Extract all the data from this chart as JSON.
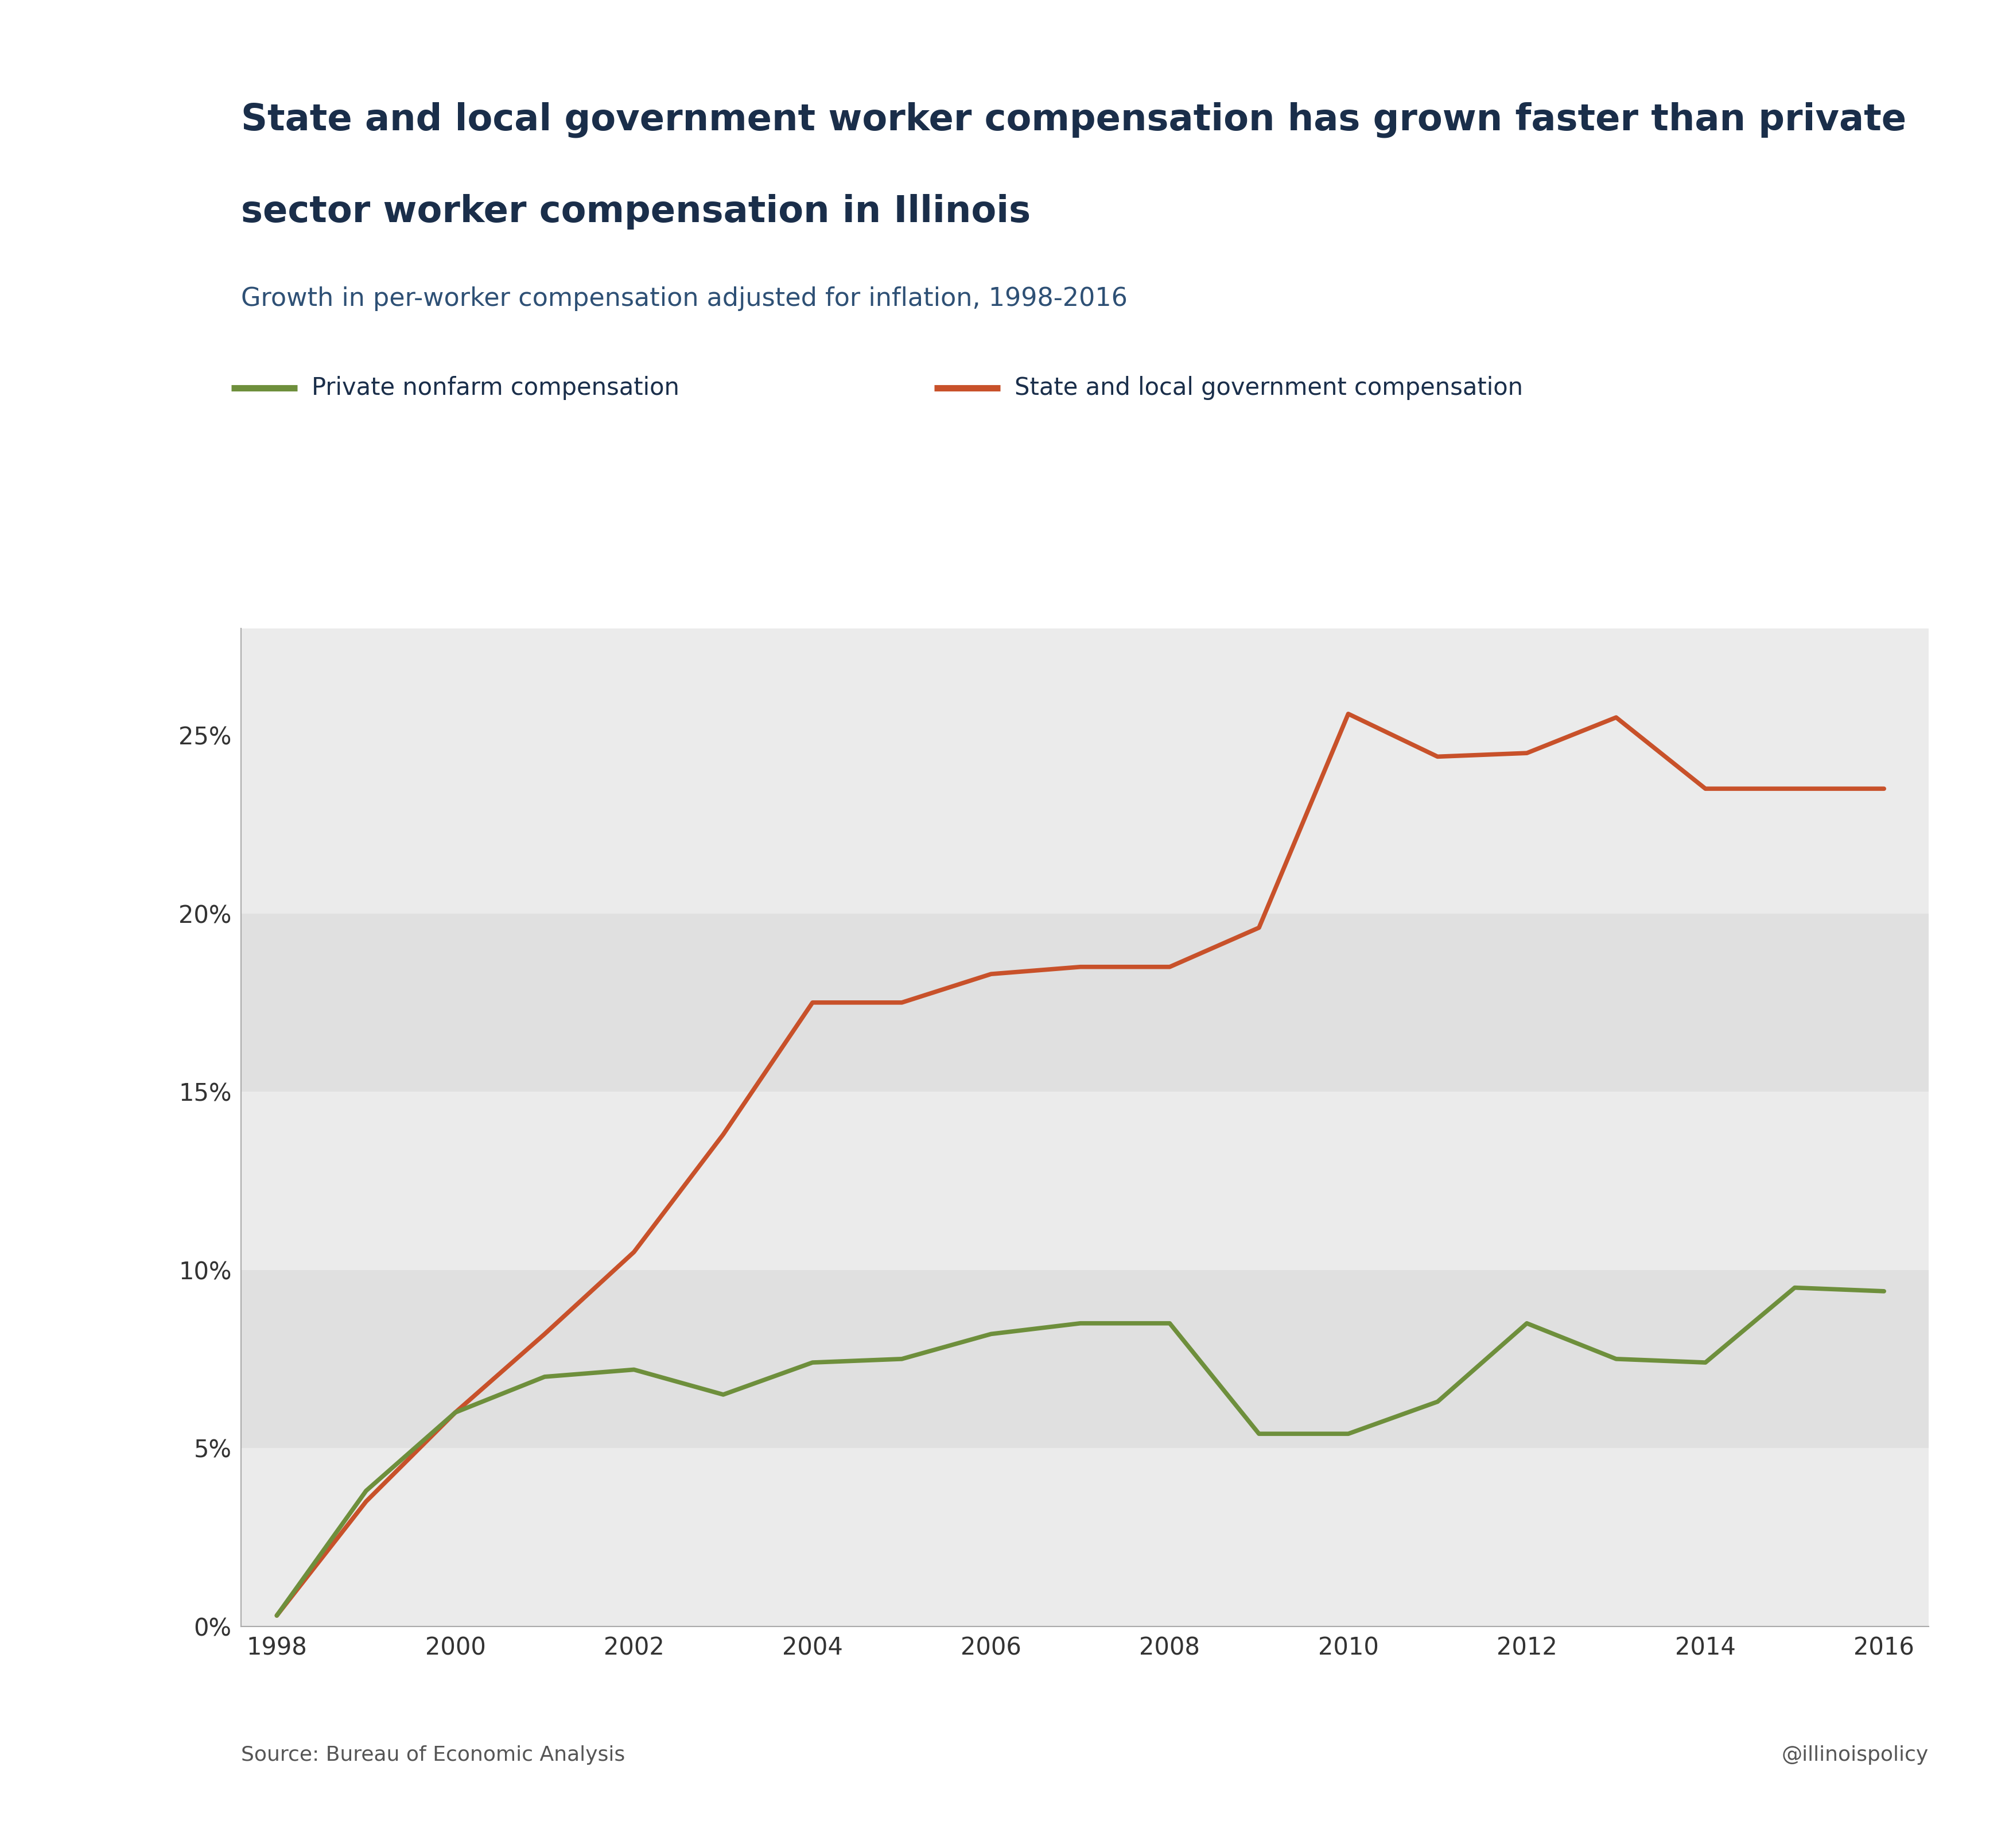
{
  "title_line1": "State and local government worker compensation has grown faster than private",
  "title_line2": "sector worker compensation in Illinois",
  "subtitle": "Growth in per-worker compensation adjusted for inflation, 1998-2016",
  "source": "Source: Bureau of Economic Analysis",
  "watermark": "@illinoispolicy",
  "private_label": "Private nonfarm compensation",
  "govt_label": "State and local government compensation",
  "private_color": "#6e8f3c",
  "govt_color": "#c8512a",
  "title_color": "#1a2e4a",
  "subtitle_color": "#2e5075",
  "tick_color": "#333333",
  "source_color": "#555555",
  "background_color": "#ffffff",
  "band_light": "#f0f0f0",
  "band_dark": "#e0e0e0",
  "spine_color": "#aaaaaa",
  "years": [
    1998,
    1999,
    2000,
    2001,
    2002,
    2003,
    2004,
    2005,
    2006,
    2007,
    2008,
    2009,
    2010,
    2011,
    2012,
    2013,
    2014,
    2015,
    2016
  ],
  "private_values": [
    0.003,
    0.038,
    0.06,
    0.07,
    0.072,
    0.065,
    0.074,
    0.075,
    0.082,
    0.085,
    0.085,
    0.054,
    0.054,
    0.063,
    0.085,
    0.075,
    0.074,
    0.095,
    0.094
  ],
  "govt_values": [
    0.003,
    0.035,
    0.06,
    0.082,
    0.105,
    0.138,
    0.175,
    0.175,
    0.183,
    0.185,
    0.185,
    0.196,
    0.256,
    0.244,
    0.245,
    0.255,
    0.235,
    0.235,
    0.235
  ],
  "ylim": [
    0,
    0.28
  ],
  "xlim": [
    1997.6,
    2016.5
  ],
  "yticks": [
    0.0,
    0.05,
    0.1,
    0.15,
    0.2,
    0.25
  ],
  "ytick_labels": [
    "0%",
    "5%",
    "10%",
    "15%",
    "20%",
    "25%"
  ],
  "xticks": [
    1998,
    2000,
    2002,
    2004,
    2006,
    2008,
    2010,
    2012,
    2014,
    2016
  ],
  "line_width": 5.5,
  "title_fontsize": 46,
  "subtitle_fontsize": 32,
  "tick_fontsize": 30,
  "legend_fontsize": 30,
  "source_fontsize": 26
}
